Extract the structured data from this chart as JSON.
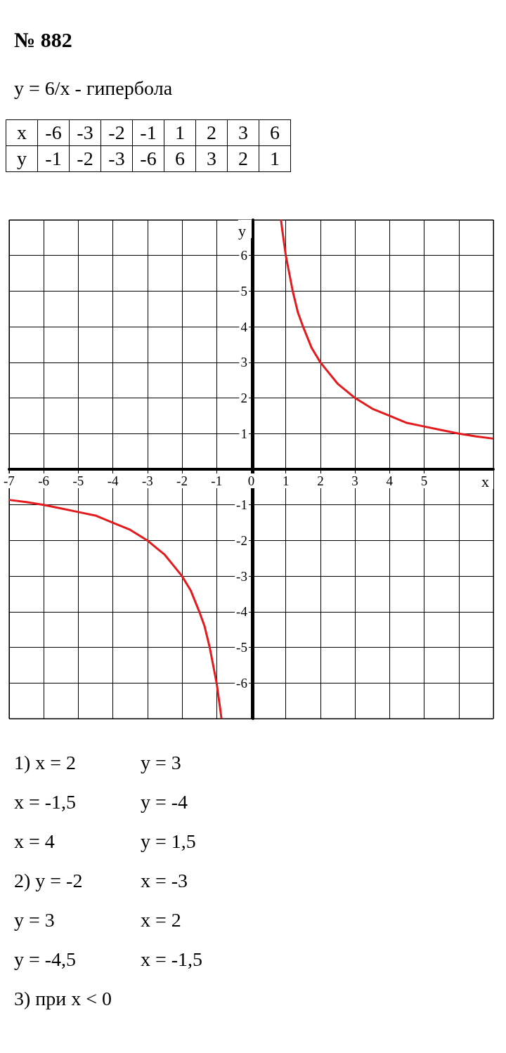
{
  "chart_data": {
    "type": "line",
    "title": "№ 882",
    "xlabel": "x",
    "ylabel": "y",
    "annotations": [
      "y = 6/x - гипербола",
      "x -6 -3 -2 -1 1 2 3 6",
      "y -1 -2 -3 -6 6 3 2 1",
      "1) x = 2\ty = 3",
      "x = -1,5\ty = -4",
      "x = 4\ty = 1,5",
      "2) y = -2\tx = -3",
      "y = 3\tx = 2",
      "y = -4,5\tx = -1,5",
      "3) при x < 0"
    ],
    "series": [
      {
        "color": "#e41a1c",
        "x": [
          0.86,
          0.9,
          1,
          1.1,
          1.2,
          1.35,
          1.5,
          1.75,
          2,
          2.25,
          2.5,
          2.75,
          3,
          3.5,
          4,
          4.5,
          5,
          5.5,
          6,
          6.5,
          7
        ],
        "values": [
          7,
          6.7,
          6,
          5.5,
          5,
          4.4,
          4,
          3.4,
          3,
          2.7,
          2.4,
          2.2,
          2,
          1.7,
          1.5,
          1.3,
          1.2,
          1.1,
          1,
          0.92,
          0.86
        ]
      },
      {
        "color": "#e41a1c",
        "x": [
          -7,
          -6.5,
          -6,
          -5.5,
          -5,
          -4.5,
          -4,
          -3.5,
          -3,
          -2.75,
          -2.5,
          -2.25,
          -2,
          -1.75,
          -1.5,
          -1.35,
          -1.2,
          -1.1,
          -1,
          -0.9,
          -0.86
        ],
        "values": [
          -0.86,
          -0.92,
          -1,
          -1.1,
          -1.2,
          -1.3,
          -1.5,
          -1.7,
          -2,
          -2.2,
          -2.4,
          -2.7,
          -3,
          -3.4,
          -4,
          -4.4,
          -5,
          -5.5,
          -6,
          -6.7,
          -7
        ]
      }
    ],
    "xlim": [
      -7,
      7
    ],
    "ylim": [
      -7,
      7
    ],
    "xticks": [
      -7,
      -6,
      -5,
      -4,
      -3,
      -2,
      -1,
      0,
      1,
      2,
      3,
      4,
      5
    ],
    "yticks": [
      -6,
      -5,
      -4,
      -3,
      -2,
      -1,
      1,
      2,
      3,
      4,
      5,
      6
    ],
    "grid": true,
    "marker": "none",
    "line_style": "solid"
  }
}
